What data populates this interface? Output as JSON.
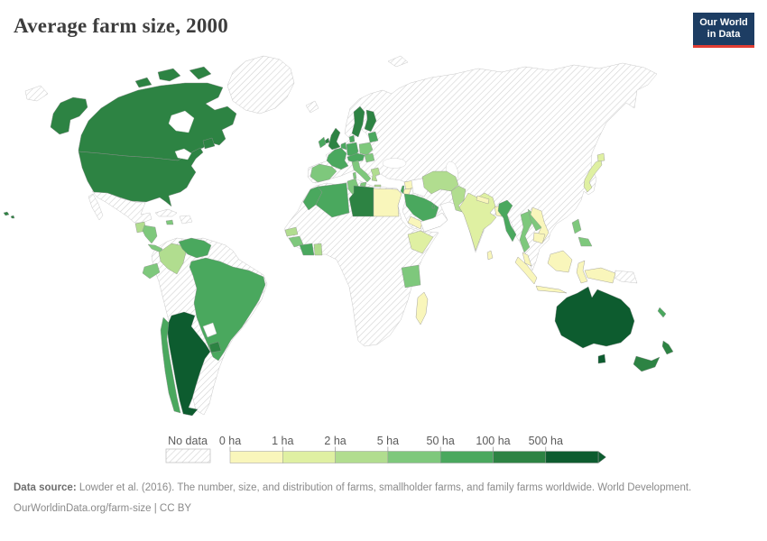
{
  "header": {
    "title": "Average farm size, 2000"
  },
  "logo": {
    "line1": "Our World",
    "line2": "in Data",
    "bg": "#1d3d63",
    "accent": "#e23d33"
  },
  "legend": {
    "no_data_label": "No data",
    "tick_labels": [
      "0 ha",
      "1 ha",
      "2 ha",
      "5 ha",
      "50 ha",
      "100 ha",
      "500 ha"
    ],
    "colors": [
      "#f9f6bb",
      "#dff0a2",
      "#b1dd8f",
      "#7ec87c",
      "#4aa85e",
      "#2d8343",
      "#0d5c2f"
    ]
  },
  "footer": {
    "source_label": "Data source:",
    "source_text": " Lowder et al. (2016). The number, size, and distribution of farms, smallholder farms, and family farms worldwide. World Development.",
    "link_text": "OurWorldinData.org/farm-size",
    "license_text": " | CC BY"
  },
  "chart_data": {
    "type": "choropleth-map",
    "title": "Average farm size, 2000",
    "unit": "hectares per farm",
    "legend_position": "bottom",
    "thresholds_ha": [
      0,
      1,
      2,
      5,
      50,
      100,
      500
    ],
    "bin_labels": [
      "0-1 ha",
      "1-2 ha",
      "2-5 ha",
      "5-50 ha",
      "50-100 ha",
      "100-500 ha",
      "500+ ha"
    ],
    "no_data_style": "hatched",
    "regions": [
      {
        "id": "canada",
        "name": "Canada",
        "bin": 5
      },
      {
        "id": "united-states",
        "name": "United States",
        "bin": 5
      },
      {
        "id": "greenland",
        "name": "Greenland",
        "bin": "no-data"
      },
      {
        "id": "mexico",
        "name": "Mexico",
        "bin": "no-data"
      },
      {
        "id": "guatemala",
        "name": "Guatemala",
        "bin": 2
      },
      {
        "id": "honduras-nicaragua",
        "name": "Honduras & Nicaragua",
        "bin": 3
      },
      {
        "id": "costa-rica-panama",
        "name": "Costa Rica & Panama",
        "bin": 3
      },
      {
        "id": "cuba",
        "name": "Cuba",
        "bin": "no-data"
      },
      {
        "id": "jamaica",
        "name": "Jamaica",
        "bin": 3
      },
      {
        "id": "hispaniola",
        "name": "Hispaniola",
        "bin": "no-data"
      },
      {
        "id": "colombia",
        "name": "Colombia",
        "bin": 2
      },
      {
        "id": "venezuela",
        "name": "Venezuela",
        "bin": 4
      },
      {
        "id": "ecuador",
        "name": "Ecuador",
        "bin": 3
      },
      {
        "id": "south-america-interior",
        "name": "Peru, Bolivia & Guianas",
        "bin": "no-data"
      },
      {
        "id": "brazil",
        "name": "Brazil",
        "bin": 4
      },
      {
        "id": "paraguay",
        "name": "Paraguay",
        "bin": "white"
      },
      {
        "id": "uruguay",
        "name": "Uruguay",
        "bin": 5
      },
      {
        "id": "argentina",
        "name": "Argentina",
        "bin": 6
      },
      {
        "id": "chile",
        "name": "Chile",
        "bin": 4
      },
      {
        "id": "iceland",
        "name": "Iceland",
        "bin": "no-data"
      },
      {
        "id": "svalbard",
        "name": "Svalbard",
        "bin": "no-data"
      },
      {
        "id": "russia-chukotka",
        "name": "Russia (Chukotka)",
        "bin": "no-data"
      },
      {
        "id": "eurasia-interior",
        "name": "Russia, Eastern Europe, Central Asia, China & Turkey",
        "bin": "no-data"
      },
      {
        "id": "united-kingdom",
        "name": "United Kingdom",
        "bin": 5
      },
      {
        "id": "ireland",
        "name": "Ireland",
        "bin": 4
      },
      {
        "id": "sweden",
        "name": "Sweden",
        "bin": 5
      },
      {
        "id": "finland",
        "name": "Finland",
        "bin": 5
      },
      {
        "id": "denmark",
        "name": "Denmark",
        "bin": 4
      },
      {
        "id": "germany",
        "name": "Germany",
        "bin": 4
      },
      {
        "id": "benelux",
        "name": "Belgium & Netherlands",
        "bin": 4
      },
      {
        "id": "france",
        "name": "France",
        "bin": 4
      },
      {
        "id": "spain-portugal",
        "name": "Spain & Portugal",
        "bin": 3
      },
      {
        "id": "italy",
        "name": "Italy",
        "bin": 3
      },
      {
        "id": "alpine-central-europe",
        "name": "Switzerland, Austria & Czechia",
        "bin": 4
      },
      {
        "id": "poland",
        "name": "Poland",
        "bin": 3
      },
      {
        "id": "baltic-states",
        "name": "Baltic states",
        "bin": 4
      },
      {
        "id": "hungary-slovakia",
        "name": "Hungary & Slovakia",
        "bin": 3
      },
      {
        "id": "greece",
        "name": "Greece",
        "bin": 2
      },
      {
        "id": "morocco",
        "name": "Morocco",
        "bin": 4
      },
      {
        "id": "algeria",
        "name": "Algeria",
        "bin": 4
      },
      {
        "id": "tunisia",
        "name": "Tunisia",
        "bin": 3
      },
      {
        "id": "libya",
        "name": "Libya",
        "bin": 5
      },
      {
        "id": "egypt",
        "name": "Egypt",
        "bin": 0
      },
      {
        "id": "senegal",
        "name": "Senegal",
        "bin": 2
      },
      {
        "id": "guinea",
        "name": "Guinea",
        "bin": 3
      },
      {
        "id": "cote-divoire",
        "name": "Côte d'Ivoire",
        "bin": 4
      },
      {
        "id": "ghana",
        "name": "Ghana",
        "bin": 2
      },
      {
        "id": "ethiopia",
        "name": "Ethiopia",
        "bin": 1
      },
      {
        "id": "tanzania",
        "name": "Tanzania",
        "bin": 3
      },
      {
        "id": "madagascar",
        "name": "Madagascar",
        "bin": 0
      },
      {
        "id": "africa-interior",
        "name": "Rest of Africa",
        "bin": "no-data"
      },
      {
        "id": "syria",
        "name": "Syria",
        "bin": 0
      },
      {
        "id": "jordan",
        "name": "Jordan",
        "bin": 0
      },
      {
        "id": "israel-lebanon",
        "name": "Israel & Lebanon",
        "bin": 4
      },
      {
        "id": "iraq",
        "name": "Iraq",
        "bin": "white"
      },
      {
        "id": "saudi-arabia",
        "name": "Saudi Arabia",
        "bin": 4
      },
      {
        "id": "yemen",
        "name": "Yemen",
        "bin": 0
      },
      {
        "id": "southeast-arabia",
        "name": "Oman & UAE",
        "bin": "white"
      },
      {
        "id": "qatar",
        "name": "Qatar",
        "bin": 4
      },
      {
        "id": "iran",
        "name": "Iran",
        "bin": 2
      },
      {
        "id": "pakistan",
        "name": "Pakistan",
        "bin": 2
      },
      {
        "id": "india",
        "name": "India",
        "bin": 1
      },
      {
        "id": "nepal",
        "name": "Nepal",
        "bin": 0
      },
      {
        "id": "bangladesh",
        "name": "Bangladesh",
        "bin": 0
      },
      {
        "id": "sri-lanka",
        "name": "Sri Lanka",
        "bin": 0
      },
      {
        "id": "myanmar",
        "name": "Myanmar",
        "bin": 4
      },
      {
        "id": "thailand",
        "name": "Thailand",
        "bin": 3
      },
      {
        "id": "laos",
        "name": "Laos",
        "bin": 3
      },
      {
        "id": "cambodia",
        "name": "Cambodia",
        "bin": 0
      },
      {
        "id": "vietnam",
        "name": "Vietnam",
        "bin": 0
      },
      {
        "id": "malaysia",
        "name": "Malaysia",
        "bin": 0
      },
      {
        "id": "indonesia",
        "name": "Indonesia",
        "bin": 0
      },
      {
        "id": "philippines",
        "name": "Philippines",
        "bin": 3
      },
      {
        "id": "japan",
        "name": "Japan",
        "bin": 1
      },
      {
        "id": "papua-new-guinea",
        "name": "Papua New Guinea",
        "bin": "no-data"
      },
      {
        "id": "australia",
        "name": "Australia",
        "bin": 6
      },
      {
        "id": "new-zealand",
        "name": "New Zealand",
        "bin": 5
      },
      {
        "id": "new-caledonia",
        "name": "New Caledonia",
        "bin": 4
      }
    ]
  }
}
